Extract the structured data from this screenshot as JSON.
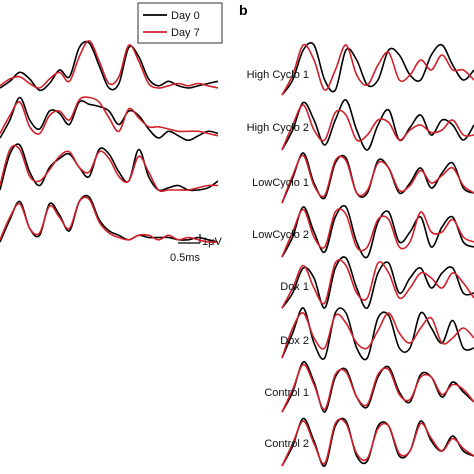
{
  "chart_data": {
    "type": "line",
    "panel_label": "b",
    "colors": {
      "day0": "#000000",
      "day7": "#d0202a"
    },
    "legend": {
      "placement": "top",
      "entries": [
        {
          "key": "day0",
          "label": "Day 0",
          "color": "#000000"
        },
        {
          "key": "day7",
          "label": "Day 7",
          "color": "#d0202a"
        }
      ]
    },
    "scale_bar": {
      "voltage": "1μV",
      "time": "0.5ms"
    },
    "grid": false,
    "left_traces": [
      {
        "label": "",
        "day0": [
          0.0,
          0.15,
          0.35,
          0.2,
          -0.05,
          0.1,
          0.4,
          0.25,
          0.9,
          1.0,
          0.5,
          0.0,
          0.1,
          0.9,
          0.7,
          0.2,
          0.05,
          0.15,
          0.05,
          0.0,
          0.05,
          0.1,
          0.15
        ],
        "day7": [
          0.05,
          0.2,
          0.25,
          0.1,
          0.0,
          0.2,
          0.35,
          0.15,
          0.7,
          1.05,
          0.6,
          0.1,
          0.25,
          0.95,
          0.6,
          0.1,
          0.0,
          0.05,
          0.1,
          0.05,
          0.1,
          0.05,
          0.0
        ]
      },
      {
        "label": "",
        "day0": [
          0.0,
          0.4,
          0.9,
          0.4,
          0.2,
          0.6,
          0.55,
          0.3,
          0.8,
          0.75,
          0.7,
          0.6,
          0.3,
          0.6,
          0.5,
          0.2,
          0.0,
          0.15,
          0.05,
          -0.05,
          0.05,
          0.15,
          0.1
        ],
        "day7": [
          0.1,
          0.5,
          0.8,
          0.25,
          0.1,
          0.5,
          0.6,
          0.4,
          0.85,
          0.9,
          0.8,
          0.45,
          0.15,
          0.65,
          0.45,
          0.25,
          0.25,
          0.2,
          0.15,
          0.15,
          0.15,
          0.1,
          0.05
        ]
      },
      {
        "label": "",
        "day0": [
          0.0,
          0.8,
          1.0,
          0.4,
          0.1,
          0.5,
          0.7,
          0.8,
          0.5,
          0.3,
          0.9,
          0.8,
          0.4,
          0.2,
          0.9,
          0.3,
          0.0,
          0.05,
          0.1,
          0.0,
          0.0,
          0.05,
          0.2
        ],
        "day7": [
          0.1,
          0.9,
          0.9,
          0.3,
          0.2,
          0.45,
          0.75,
          0.85,
          0.5,
          0.4,
          0.85,
          0.7,
          0.3,
          0.2,
          0.75,
          0.4,
          0.0,
          0.0,
          0.0,
          0.0,
          0.05,
          0.1,
          0.1
        ]
      },
      {
        "label": "",
        "day0": [
          0.0,
          0.5,
          0.9,
          0.3,
          0.15,
          0.85,
          0.6,
          0.25,
          0.9,
          1.0,
          0.5,
          0.25,
          0.15,
          0.05,
          0.15,
          0.1,
          0.1,
          0.1,
          0.05,
          0.05,
          0.1,
          0.05,
          0.0
        ],
        "day7": [
          0.05,
          0.55,
          0.85,
          0.3,
          0.2,
          0.8,
          0.55,
          0.3,
          0.9,
          0.95,
          0.45,
          0.2,
          0.1,
          0.05,
          0.15,
          0.15,
          0.05,
          0.15,
          0.05,
          0.1,
          0.05,
          0.0,
          0.0
        ]
      }
    ],
    "right_traces": [
      {
        "label": "High Cyclo 1",
        "day0": [
          0.0,
          0.3,
          0.9,
          1.0,
          0.3,
          0.1,
          0.9,
          0.7,
          0.2,
          0.3,
          0.9,
          0.8,
          0.4,
          0.3,
          0.8,
          1.0,
          0.6,
          0.3,
          0.5
        ],
        "day7": [
          0.0,
          0.4,
          1.0,
          0.7,
          0.1,
          0.5,
          1.0,
          0.4,
          0.2,
          0.6,
          0.85,
          0.3,
          0.4,
          0.7,
          0.5,
          0.8,
          0.5,
          0.5,
          0.3
        ]
      },
      {
        "label": "High Cyclo 2",
        "day0": [
          0.0,
          0.4,
          0.95,
          0.6,
          0.1,
          0.6,
          1.0,
          0.4,
          0.0,
          0.5,
          0.8,
          0.2,
          0.45,
          0.7,
          0.3,
          0.6,
          0.5,
          0.2,
          0.5
        ],
        "day7": [
          0.0,
          0.5,
          0.9,
          0.4,
          0.2,
          0.75,
          0.7,
          0.2,
          0.3,
          0.6,
          0.55,
          0.2,
          0.4,
          0.5,
          0.35,
          0.4,
          0.6,
          0.3,
          0.3
        ]
      },
      {
        "label": "LowCyclo 1",
        "day0": [
          0.0,
          0.5,
          1.0,
          0.4,
          0.1,
          0.8,
          0.9,
          0.2,
          0.2,
          0.85,
          0.7,
          0.2,
          0.4,
          0.7,
          0.3,
          0.6,
          0.8,
          0.3,
          0.2
        ],
        "day7": [
          0.0,
          0.55,
          0.95,
          0.35,
          0.15,
          0.85,
          0.85,
          0.2,
          0.25,
          0.8,
          0.7,
          0.25,
          0.35,
          0.65,
          0.4,
          0.55,
          0.7,
          0.35,
          0.2
        ]
      },
      {
        "label": "LowCyclo 2",
        "day0": [
          0.0,
          0.4,
          1.0,
          0.5,
          0.1,
          0.8,
          1.0,
          0.3,
          0.0,
          0.7,
          0.9,
          0.3,
          0.5,
          0.8,
          0.2,
          0.6,
          0.8,
          0.3,
          0.2
        ],
        "day7": [
          0.0,
          0.5,
          0.95,
          0.4,
          0.2,
          0.9,
          0.85,
          0.2,
          0.2,
          0.75,
          0.75,
          0.2,
          0.3,
          0.9,
          0.5,
          0.5,
          0.75,
          0.4,
          0.3
        ]
      },
      {
        "label": "Dox 1",
        "day0": [
          0.0,
          0.3,
          0.8,
          0.6,
          0.0,
          0.8,
          1.0,
          0.4,
          0.0,
          0.7,
          0.9,
          0.3,
          0.6,
          0.8,
          0.4,
          0.7,
          0.8,
          0.3,
          0.3
        ],
        "day7": [
          0.0,
          0.4,
          0.85,
          0.4,
          0.1,
          0.9,
          0.85,
          0.3,
          0.2,
          0.9,
          0.7,
          0.2,
          0.4,
          0.7,
          0.6,
          0.4,
          0.7,
          0.5,
          0.2
        ]
      },
      {
        "label": "Dox 2",
        "day0": [
          0.0,
          0.5,
          1.0,
          0.3,
          0.0,
          0.9,
          0.9,
          0.2,
          0.0,
          0.8,
          0.85,
          0.2,
          0.2,
          0.9,
          0.6,
          0.3,
          0.75,
          0.2,
          0.2
        ],
        "day7": [
          0.0,
          0.6,
          0.9,
          0.4,
          0.2,
          0.85,
          0.7,
          0.3,
          0.2,
          0.55,
          0.9,
          0.5,
          0.3,
          0.6,
          0.8,
          0.3,
          0.4,
          0.6,
          0.4
        ]
      },
      {
        "label": "Control 1",
        "day0": [
          0.0,
          0.4,
          1.0,
          0.6,
          0.0,
          0.7,
          0.85,
          0.3,
          0.1,
          0.7,
          0.9,
          0.4,
          0.2,
          0.75,
          0.7,
          0.3,
          0.6,
          0.4,
          0.2
        ],
        "day7": [
          0.0,
          0.45,
          0.95,
          0.55,
          0.05,
          0.75,
          0.8,
          0.3,
          0.15,
          0.75,
          0.85,
          0.35,
          0.25,
          0.7,
          0.7,
          0.35,
          0.55,
          0.45,
          0.2
        ]
      },
      {
        "label": "Control 2",
        "day0": [
          0.0,
          0.4,
          0.95,
          0.5,
          0.0,
          0.8,
          0.9,
          0.2,
          0.1,
          0.8,
          0.8,
          0.2,
          0.3,
          0.9,
          0.5,
          0.3,
          0.6,
          0.3,
          0.2
        ],
        "day7": [
          0.0,
          0.45,
          0.9,
          0.45,
          0.05,
          0.85,
          0.85,
          0.25,
          0.15,
          0.75,
          0.8,
          0.25,
          0.3,
          0.85,
          0.55,
          0.3,
          0.55,
          0.35,
          0.2
        ]
      }
    ]
  }
}
